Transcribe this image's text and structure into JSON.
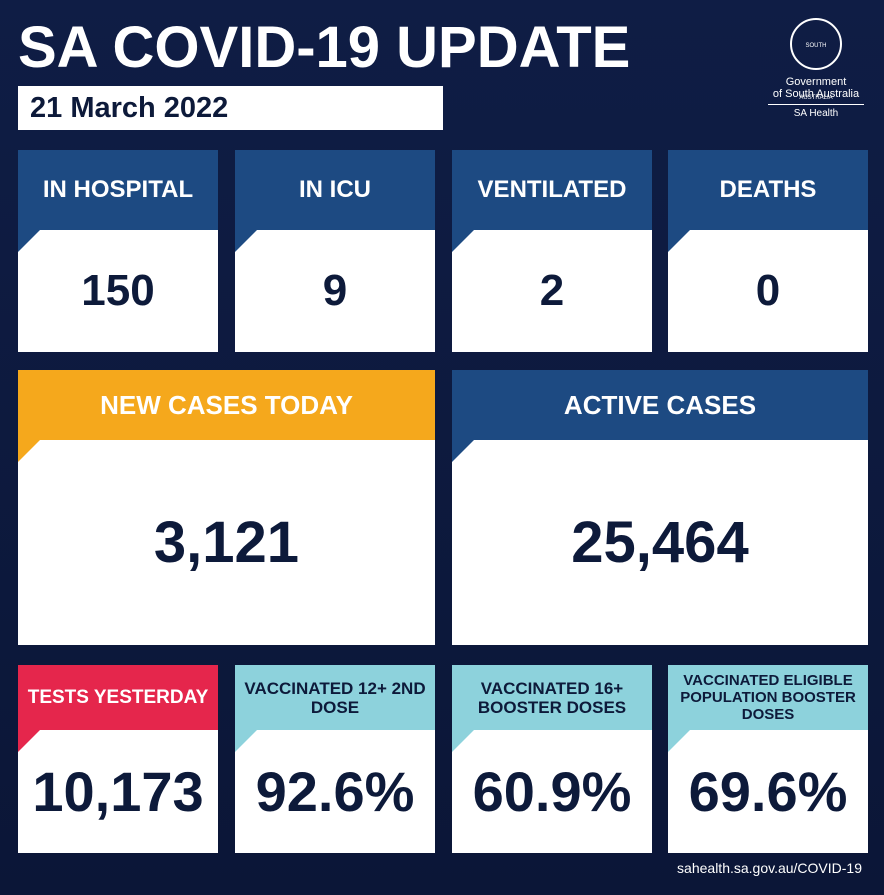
{
  "header": {
    "title": "SA COVID-19 UPDATE",
    "date": "21 March 2022"
  },
  "logo": {
    "emblem": "SOUTH AUSTRALIA",
    "line1": "Government",
    "line2": "of South Australia",
    "line3": "SA Health"
  },
  "tiles": [
    {
      "label": "IN HOSPITAL",
      "value": "150"
    },
    {
      "label": "IN ICU",
      "value": "9"
    },
    {
      "label": "VENTILATED",
      "value": "2"
    },
    {
      "label": "DEATHS",
      "value": "0"
    },
    {
      "label": "NEW CASES TODAY",
      "value": "3,121"
    },
    {
      "label": "ACTIVE CASES",
      "value": "25,464"
    },
    {
      "label": "TESTS YESTERDAY",
      "value": "10,173"
    },
    {
      "label": "VACCINATED 12+ 2ND DOSE",
      "value": "92.6%"
    },
    {
      "label": "VACCINATED 16+ BOOSTER DOSES",
      "value": "60.9%"
    },
    {
      "label": "VACCINATED ELIGIBLE POPULATION BOOSTER DOSES",
      "value": "69.6%"
    }
  ],
  "footer": {
    "url": "sahealth.sa.gov.au/COVID-19"
  }
}
